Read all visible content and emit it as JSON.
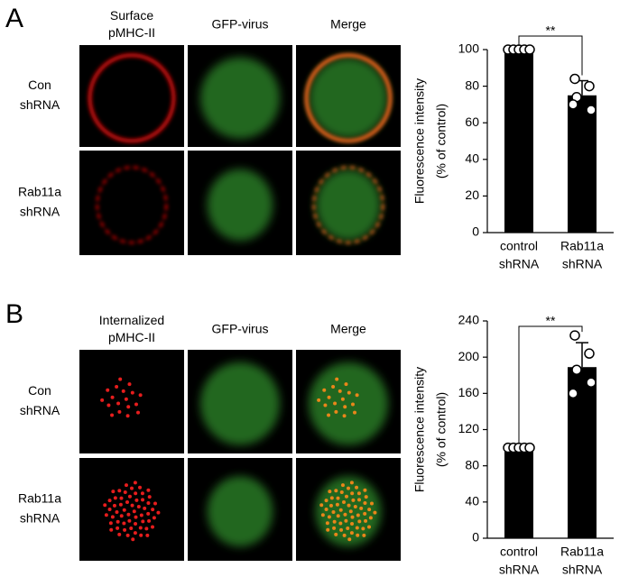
{
  "figure": {
    "panels": [
      {
        "label": "A",
        "column_headers": [
          "Surface pMHC-II",
          "GFP-virus",
          "Merge"
        ],
        "row_labels": [
          "Con shRNA",
          "Rab11a shRNA"
        ]
      },
      {
        "label": "B",
        "column_headers": [
          "Internalized pMHC-II",
          "GFP-virus",
          "Merge"
        ],
        "row_labels": [
          "Con shRNA",
          "Rab11a shRNA"
        ]
      }
    ]
  },
  "chart_data": [
    {
      "type": "bar",
      "y_label": [
        "Fluorescence intensity",
        "(% of control)"
      ],
      "categories": [
        "control shRNA",
        "Rab11a shRNA"
      ],
      "values": [
        100,
        75
      ],
      "errors": [
        0,
        8
      ],
      "points": [
        [
          100,
          100,
          100,
          100,
          100
        ],
        [
          84,
          80,
          74,
          67,
          70
        ]
      ],
      "color": "#000000",
      "ylim": [
        0,
        100
      ],
      "yticks": [
        0,
        20,
        40,
        60,
        80,
        100
      ],
      "annotation": "**"
    },
    {
      "type": "bar",
      "y_label": [
        "Fluorescence intensity",
        "(% of control)"
      ],
      "categories": [
        "control shRNA",
        "Rab11a shRNA"
      ],
      "values": [
        100,
        189
      ],
      "errors": [
        0,
        27
      ],
      "points": [
        [
          100,
          100,
          100,
          100,
          100
        ],
        [
          224,
          204,
          186,
          172,
          160
        ]
      ],
      "color": "#000000",
      "ylim": [
        0,
        240
      ],
      "yticks": [
        0,
        40,
        80,
        120,
        160,
        200,
        240
      ],
      "annotation": "**"
    }
  ]
}
